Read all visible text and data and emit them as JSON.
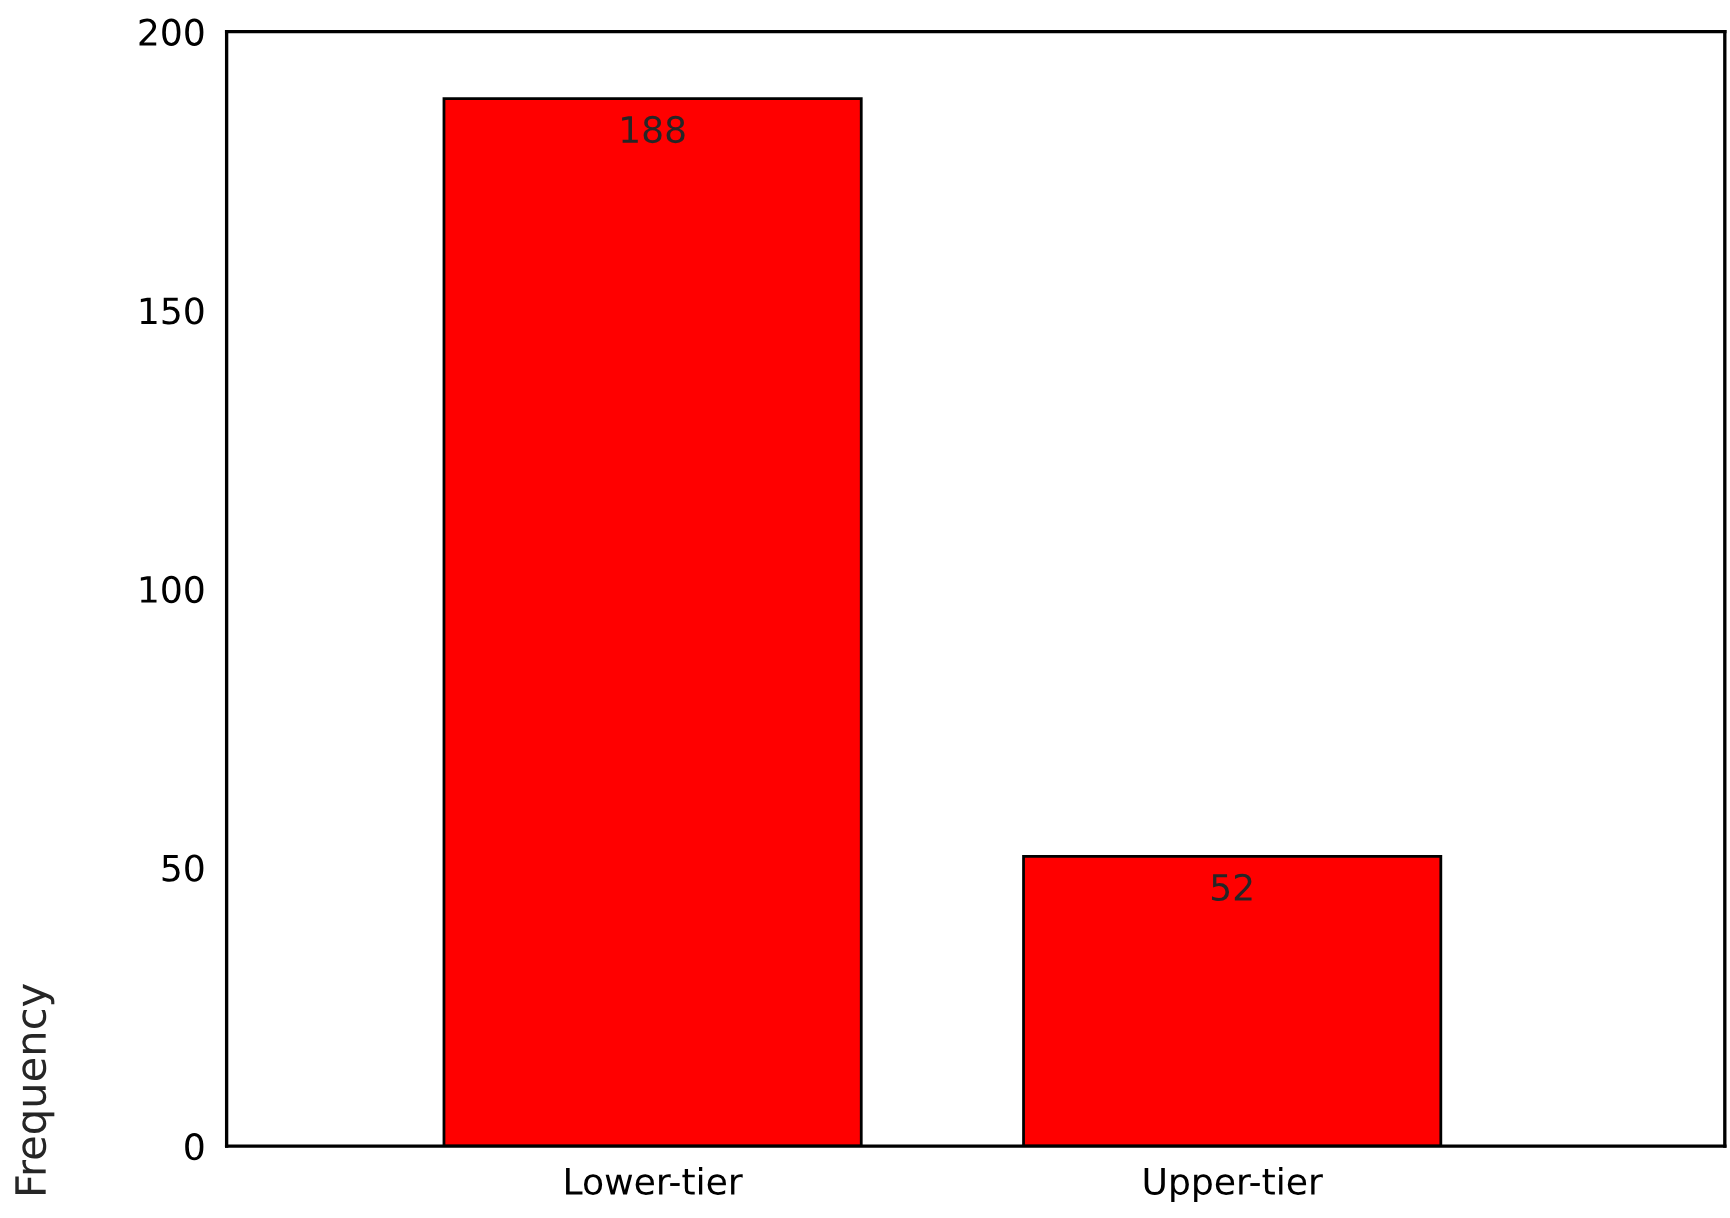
{
  "chart_data": {
    "type": "bar",
    "categories": [
      "Lower-tier",
      "Upper-tier"
    ],
    "values": [
      188,
      52
    ],
    "color": "#ff0000",
    "ylabel": "Frequency",
    "ylim": [
      0,
      200
    ],
    "yticks": [
      0,
      50,
      100,
      150,
      200
    ],
    "data_labels": true,
    "grid": false,
    "legend": false
  }
}
